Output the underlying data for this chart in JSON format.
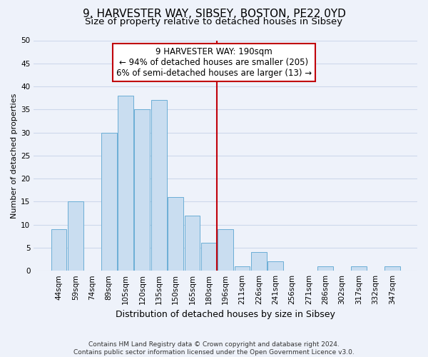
{
  "title": "9, HARVESTER WAY, SIBSEY, BOSTON, PE22 0YD",
  "subtitle": "Size of property relative to detached houses in Sibsey",
  "xlabel": "Distribution of detached houses by size in Sibsey",
  "ylabel": "Number of detached properties",
  "bar_labels": [
    "44sqm",
    "59sqm",
    "74sqm",
    "89sqm",
    "105sqm",
    "120sqm",
    "135sqm",
    "150sqm",
    "165sqm",
    "180sqm",
    "196sqm",
    "211sqm",
    "226sqm",
    "241sqm",
    "256sqm",
    "271sqm",
    "286sqm",
    "302sqm",
    "317sqm",
    "332sqm",
    "347sqm"
  ],
  "bar_values": [
    9,
    15,
    0,
    30,
    38,
    35,
    37,
    16,
    12,
    6,
    9,
    1,
    4,
    2,
    0,
    0,
    1,
    0,
    1,
    0,
    1
  ],
  "bar_color": "#c9ddf0",
  "bar_edge_color": "#6baed6",
  "vline_x_index": 10,
  "vline_color": "#c0000a",
  "annotation_line1": "9 HARVESTER WAY: 190sqm",
  "annotation_line2": "← 94% of detached houses are smaller (205)",
  "annotation_line3": "6% of semi-detached houses are larger (13) →",
  "annotation_box_color": "#ffffff",
  "annotation_box_edge_color": "#c0000a",
  "ylim": [
    0,
    50
  ],
  "yticks": [
    0,
    5,
    10,
    15,
    20,
    25,
    30,
    35,
    40,
    45,
    50
  ],
  "footnote": "Contains HM Land Registry data © Crown copyright and database right 2024.\nContains public sector information licensed under the Open Government Licence v3.0.",
  "grid_color": "#cdd8eb",
  "bg_color": "#eef2fa",
  "title_fontsize": 11,
  "subtitle_fontsize": 9.5,
  "xlabel_fontsize": 9,
  "ylabel_fontsize": 8,
  "tick_fontsize": 7.5,
  "footnote_fontsize": 6.5,
  "annotation_fontsize": 8.5
}
